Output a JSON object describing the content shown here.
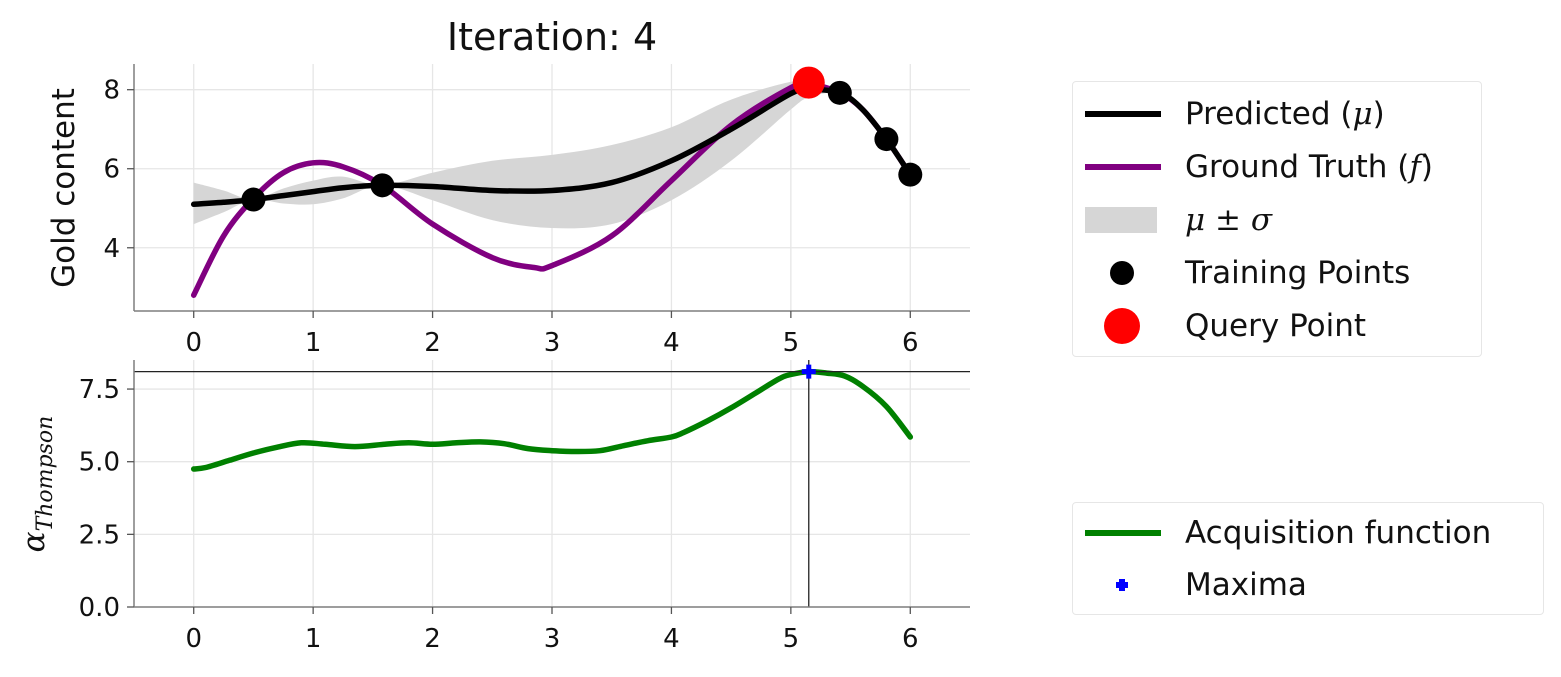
{
  "chart_data": [
    {
      "type": "line",
      "title": "Iteration: 4",
      "ylabel": "Gold content",
      "xlim": [
        -0.5,
        6.5
      ],
      "ylim": [
        2.4,
        8.65
      ],
      "xticks": [
        0,
        1,
        2,
        3,
        4,
        5,
        6
      ],
      "yticks": [
        4,
        6,
        8
      ],
      "grid": true,
      "series": [
        {
          "name": "Predicted (μ)",
          "color": "#000000",
          "x": [
            0,
            0.25,
            0.5,
            0.75,
            1,
            1.25,
            1.58,
            2,
            2.5,
            3,
            3.5,
            4,
            4.5,
            5,
            5.15,
            5.41,
            5.6,
            5.8,
            6
          ],
          "y": [
            5.1,
            5.15,
            5.22,
            5.32,
            5.42,
            5.52,
            5.58,
            5.55,
            5.45,
            5.45,
            5.65,
            6.2,
            7.0,
            7.9,
            8.0,
            7.92,
            7.5,
            6.75,
            5.85
          ]
        },
        {
          "name": "Ground Truth (f)",
          "color": "#800080",
          "x": [
            0,
            0.25,
            0.5,
            0.75,
            1,
            1.25,
            1.58,
            2,
            2.5,
            2.85,
            3,
            3.5,
            4,
            4.5,
            5,
            5.15,
            5.41,
            5.6,
            5.8,
            6
          ],
          "y": [
            2.8,
            4.3,
            5.25,
            5.9,
            6.15,
            6.05,
            5.58,
            4.6,
            3.75,
            3.5,
            3.55,
            4.3,
            5.7,
            7.1,
            8.05,
            8.15,
            7.92,
            7.5,
            6.75,
            5.85
          ]
        },
        {
          "name": "μ ± σ",
          "type": "area",
          "color": "#d6d6d6",
          "x": [
            0,
            0.25,
            0.5,
            0.75,
            1,
            1.25,
            1.58,
            2,
            2.5,
            3,
            3.5,
            4,
            4.5,
            5,
            5.15,
            5.41,
            5.6,
            5.8,
            6
          ],
          "upper": [
            5.65,
            5.45,
            5.22,
            5.5,
            5.7,
            5.8,
            5.58,
            5.9,
            6.2,
            6.35,
            6.6,
            7.05,
            7.75,
            8.2,
            8.15,
            7.92,
            7.5,
            6.75,
            5.85
          ],
          "lower": [
            4.6,
            4.9,
            5.22,
            5.12,
            5.1,
            5.25,
            5.58,
            5.2,
            4.7,
            4.5,
            4.6,
            5.2,
            6.2,
            7.5,
            7.8,
            7.92,
            7.5,
            6.75,
            5.85
          ]
        }
      ],
      "training_points": {
        "name": "Training Points",
        "color": "#000000",
        "x": [
          0.5,
          1.58,
          5.41,
          5.8,
          6.0
        ],
        "y": [
          5.22,
          5.58,
          7.92,
          6.75,
          5.85
        ]
      },
      "query_point": {
        "name": "Query Point",
        "color": "#ff0000",
        "x": 5.15,
        "y": 8.18
      }
    },
    {
      "type": "line",
      "ylabel": "α_Thompson",
      "xlim": [
        -0.5,
        6.5
      ],
      "ylim": [
        0,
        8.5
      ],
      "xticks": [
        0,
        1,
        2,
        3,
        4,
        5,
        6
      ],
      "yticks": [
        0.0,
        2.5,
        5.0,
        7.5
      ],
      "grid": true,
      "series": [
        {
          "name": "Acquisition function",
          "color": "#008000",
          "x": [
            0,
            0.1,
            0.3,
            0.5,
            0.7,
            0.9,
            1.1,
            1.35,
            1.6,
            1.8,
            2.0,
            2.2,
            2.4,
            2.6,
            2.8,
            3.0,
            3.2,
            3.4,
            3.6,
            3.8,
            4.0,
            4.1,
            4.3,
            4.5,
            4.7,
            4.9,
            5.0,
            5.15,
            5.3,
            5.45,
            5.6,
            5.8,
            6.0
          ],
          "y": [
            4.75,
            4.8,
            5.05,
            5.3,
            5.5,
            5.65,
            5.6,
            5.52,
            5.6,
            5.65,
            5.6,
            5.65,
            5.68,
            5.62,
            5.45,
            5.38,
            5.35,
            5.38,
            5.55,
            5.72,
            5.85,
            6.0,
            6.4,
            6.85,
            7.35,
            7.85,
            8.0,
            8.1,
            8.05,
            7.95,
            7.6,
            6.9,
            5.85
          ]
        }
      ],
      "maxima": {
        "name": "Maxima",
        "color": "#0000ff",
        "x": 5.15,
        "y": 8.1
      }
    }
  ],
  "legends": {
    "top": [
      "Predicted (μ)",
      "Ground Truth (f)",
      "μ ± σ",
      "Training Points",
      "Query Point"
    ],
    "bottom": [
      "Acquisition function",
      "Maxima"
    ]
  },
  "colors": {
    "predicted": "#000000",
    "ground_truth": "#800080",
    "band": "#d6d6d6",
    "training": "#000000",
    "query": "#ff0000",
    "acquisition": "#008000",
    "maxima": "#0000ff",
    "grid": "#e6e6e6",
    "axis": "#7f7f7f"
  }
}
